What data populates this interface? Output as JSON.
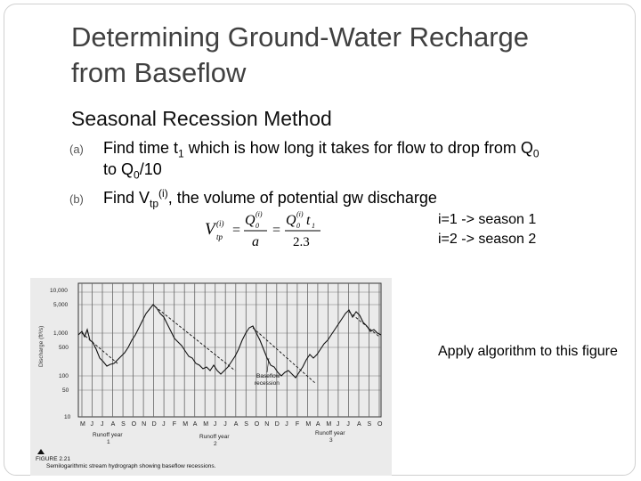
{
  "slide": {
    "title_line1": "Determining Ground-Water Recharge",
    "title_line2": "from Baseflow",
    "subtitle": "Seasonal Recession Method",
    "item_a": {
      "marker": "(a)",
      "text_part1": "Find time t",
      "sub1": "1",
      "text_part2": " which is how long it takes for flow to drop from Q",
      "sub2": "0",
      "line2_part1": "to Q",
      "line2_sub": "0",
      "line2_part2": "/10"
    },
    "item_b": {
      "marker": "(b)",
      "text_part1": "Find V",
      "sub": "tp",
      "sup": "(i)",
      "text_part2": ", the volume of potential gw discharge"
    },
    "seasons": [
      "i=1 -> season 1",
      "i=2 -> season 2"
    ],
    "apply_text": "Apply algorithm to this figure",
    "formula": {
      "V": "V",
      "V_sup": "(i)",
      "V_sub": "tp",
      "eq1": "=",
      "num1": "Q",
      "num1_sup": "(i)",
      "num1_sub": "0",
      "den1": "a",
      "eq2": "=",
      "num2": "Q",
      "num2_sup": "(i)",
      "num2_sub": "0",
      "num2_t": "t",
      "num2_tsub": "1",
      "den2": "2.3"
    }
  },
  "figure": {
    "ylabel": "Discharge (ft³/s)",
    "y_ticks": [
      "10,000",
      "5,000",
      "1,000",
      "500",
      "100",
      "50",
      "10"
    ],
    "months": [
      "M",
      "J",
      "J",
      "A",
      "S",
      "O",
      "N",
      "D",
      "J",
      "F",
      "M",
      "A",
      "M",
      "J",
      "J",
      "A",
      "S",
      "O",
      "N",
      "D",
      "J",
      "F",
      "M",
      "A",
      "M",
      "J",
      "J",
      "A",
      "S",
      "O"
    ],
    "year_labels": [
      {
        "line1": "Runoff year",
        "line2": "1"
      },
      {
        "line1": "Runoff year",
        "line2": "2"
      },
      {
        "line1": "Runoff year",
        "line2": "3"
      }
    ],
    "annotation_line1": "Baseflow",
    "annotation_line2": "recession",
    "caption_label": "FIGURE 2.21",
    "caption_text": "Semilogarithmic stream hydrograph showing baseflow recessions.",
    "colors": {
      "paper": "#ebebeb",
      "ink": "#1a1a1a"
    }
  }
}
